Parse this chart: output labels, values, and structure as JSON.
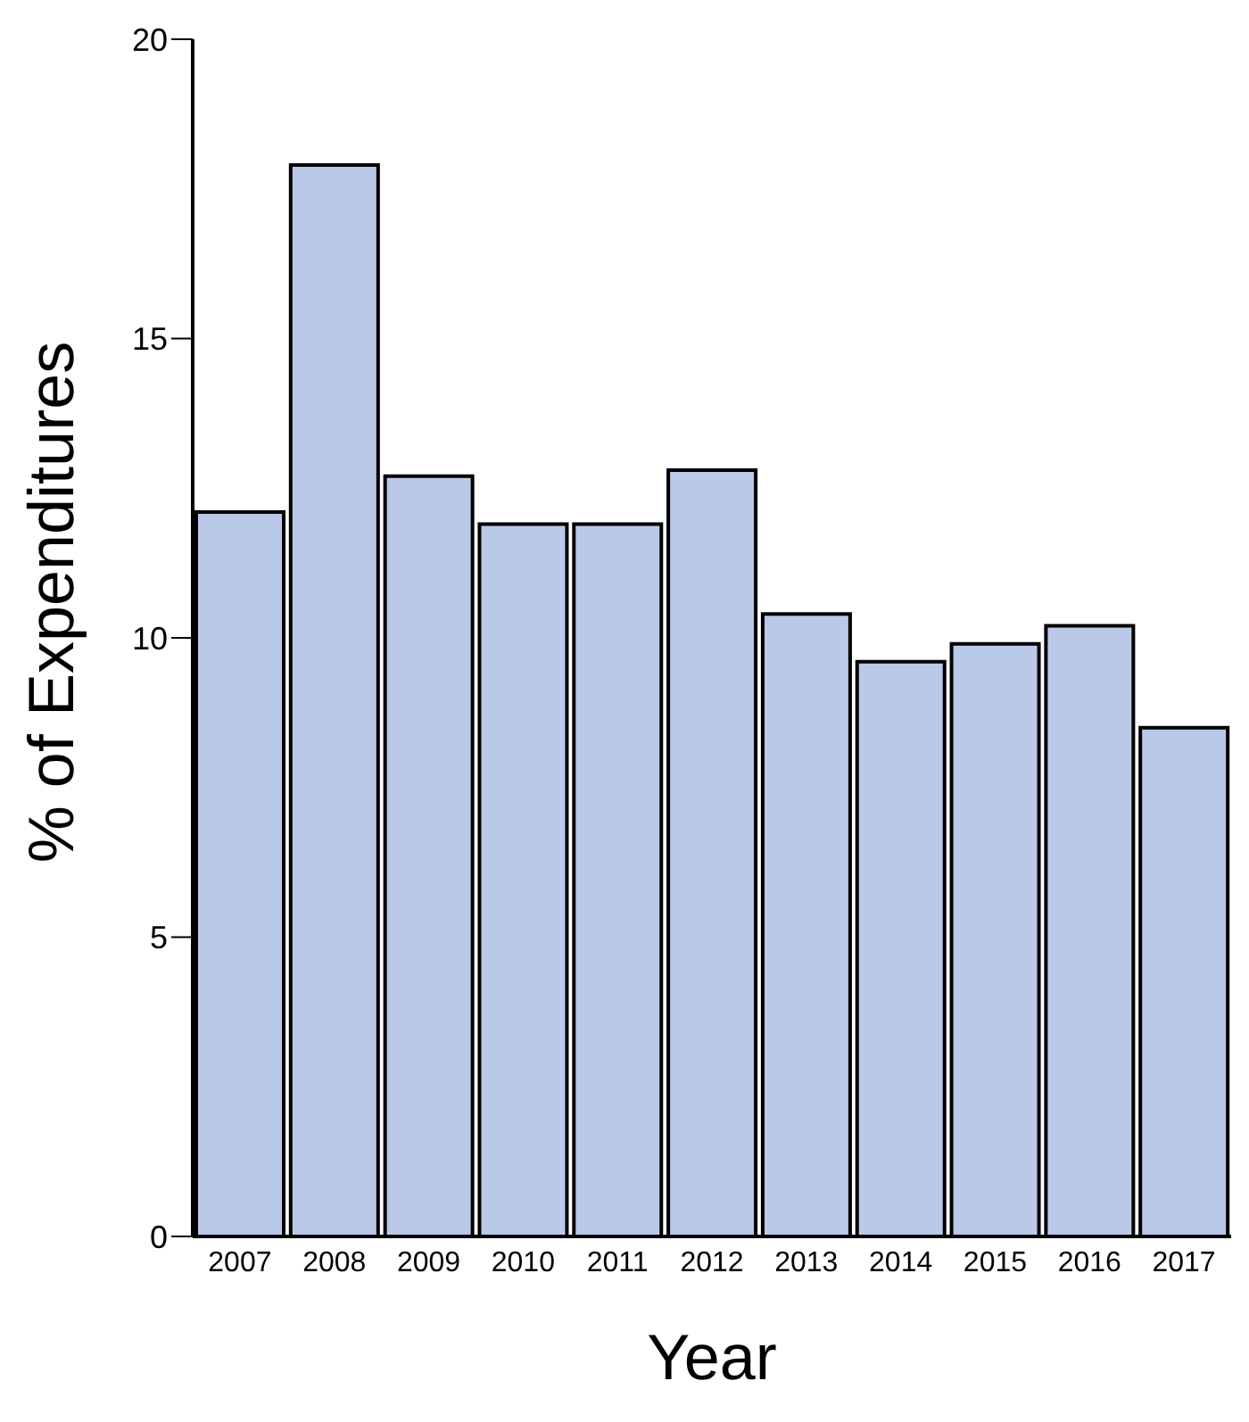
{
  "chart_data": {
    "type": "bar",
    "xlabel": "Year",
    "ylabel": "% of Expenditures",
    "categories": [
      "2007",
      "2008",
      "2009",
      "2010",
      "2011",
      "2012",
      "2013",
      "2014",
      "2015",
      "2016",
      "2017"
    ],
    "values": [
      12.1,
      17.9,
      12.7,
      11.9,
      11.9,
      12.8,
      10.4,
      9.6,
      9.9,
      10.2,
      8.5
    ],
    "color": "#bac9e8",
    "ylim": [
      0,
      20
    ],
    "yticks": [
      0,
      5,
      10,
      15,
      20
    ],
    "grid": false,
    "legend": false
  }
}
